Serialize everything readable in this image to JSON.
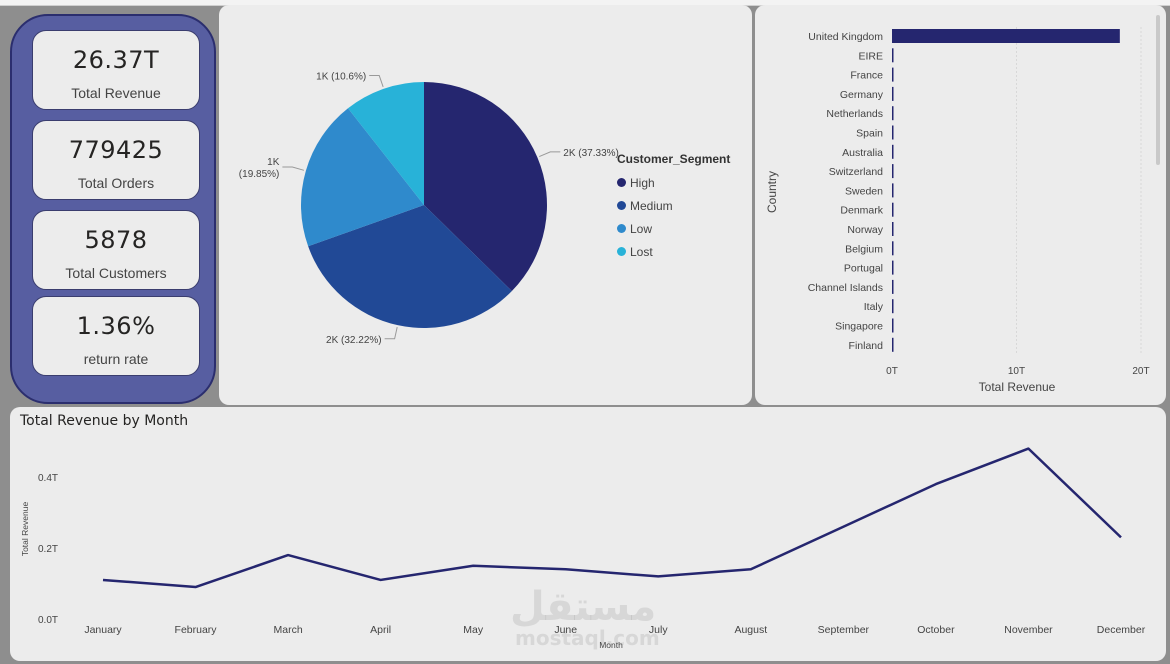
{
  "kpis": [
    {
      "value": "26.37T",
      "label": "Total Revenue"
    },
    {
      "value": "779425",
      "label": "Total Orders"
    },
    {
      "value": "5878",
      "label": "Total Customers"
    },
    {
      "value": "1.36%",
      "label": "return rate"
    }
  ],
  "colors": {
    "high": "#25266f",
    "medium": "#214996",
    "low": "#2f8acc",
    "lost": "#28b2d8",
    "line": "#25266f",
    "bar": "#25266f"
  },
  "watermark": {
    "arabic": "مستقل",
    "latin": "mostaql.com"
  },
  "chart_data": [
    {
      "type": "pie",
      "legend_title": "Customer_Segment",
      "legend_position": "right",
      "slices": [
        {
          "name": "High",
          "value": 37.33,
          "label": "2K (37.33%)"
        },
        {
          "name": "Medium",
          "value": 32.22,
          "label": "2K (32.22%)"
        },
        {
          "name": "Low",
          "value": 19.85,
          "label": "1K (19.85%)"
        },
        {
          "name": "Lost",
          "value": 10.6,
          "label": "1K (10.6%)"
        }
      ]
    },
    {
      "type": "bar",
      "orientation": "horizontal",
      "ylabel": "Country",
      "xlabel": "Total Revenue",
      "categories": [
        "United Kingdom",
        "EIRE",
        "France",
        "Germany",
        "Netherlands",
        "Spain",
        "Australia",
        "Switzerland",
        "Sweden",
        "Denmark",
        "Norway",
        "Belgium",
        "Portugal",
        "Channel Islands",
        "Italy",
        "Singapore",
        "Finland"
      ],
      "values": [
        18.3,
        0.12,
        0.1,
        0.1,
        0.09,
        0.06,
        0.05,
        0.05,
        0.04,
        0.04,
        0.04,
        0.04,
        0.04,
        0.03,
        0.03,
        0.03,
        0.03
      ],
      "xlim": [
        0,
        20
      ],
      "xticks": [
        "0T",
        "10T",
        "20T"
      ],
      "grid": true
    },
    {
      "type": "line",
      "title": "Total Revenue by Month",
      "xlabel": "Month",
      "ylabel": "Total Revenue",
      "categories": [
        "January",
        "February",
        "March",
        "April",
        "May",
        "June",
        "July",
        "August",
        "September",
        "October",
        "November",
        "December"
      ],
      "values": [
        0.11,
        0.09,
        0.18,
        0.11,
        0.15,
        0.14,
        0.12,
        0.14,
        0.26,
        0.38,
        0.48,
        0.23
      ],
      "ylim": [
        0,
        0.5
      ],
      "yticks": [
        "0.0T",
        "0.2T",
        "0.4T"
      ]
    }
  ]
}
